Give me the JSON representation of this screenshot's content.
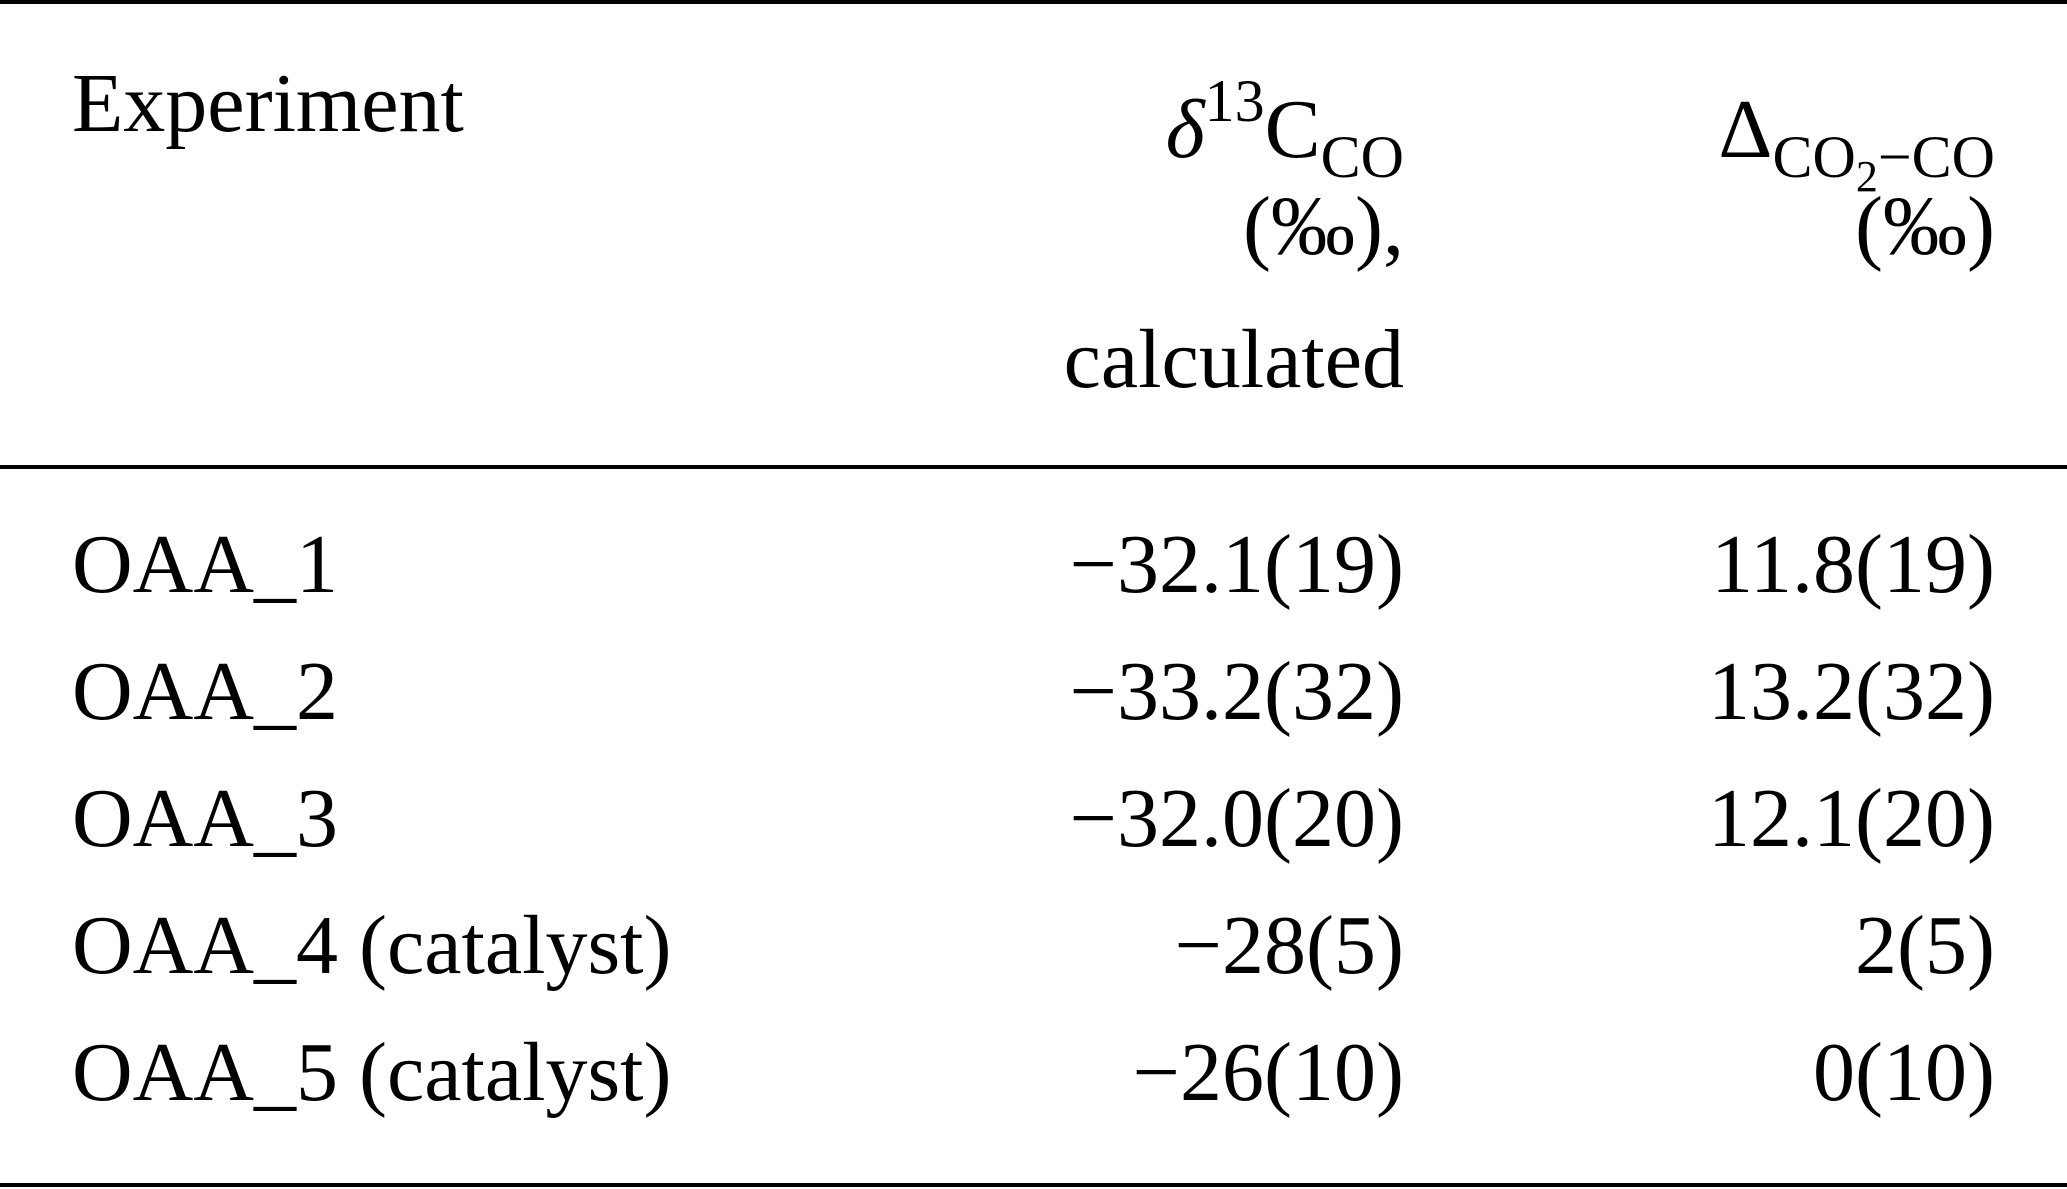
{
  "table": {
    "header": {
      "experiment": "Experiment",
      "delta13c": {
        "symbol": "δ",
        "superscript": "13",
        "base": "C",
        "subscript": "CO",
        "unit": "(‰),",
        "note": "calculated"
      },
      "delta_diff": {
        "symbol": "Δ",
        "subscript_a": "CO",
        "subscript_a_num": "2",
        "subscript_b": "−CO",
        "unit": "(‰)"
      }
    },
    "rows": [
      {
        "experiment": "OAA_1",
        "delta13c": "−32.1(19)",
        "diff": "11.8(19)"
      },
      {
        "experiment": "OAA_2",
        "delta13c": "−33.2(32)",
        "diff": "13.2(32)"
      },
      {
        "experiment": "OAA_3",
        "delta13c": "−32.0(20)",
        "diff": "12.1(20)"
      },
      {
        "experiment": "OAA_4 (catalyst)",
        "delta13c": "−28(5)",
        "diff": "2(5)"
      },
      {
        "experiment": "OAA_5 (catalyst)",
        "delta13c": "−26(10)",
        "diff": "0(10)"
      }
    ]
  }
}
